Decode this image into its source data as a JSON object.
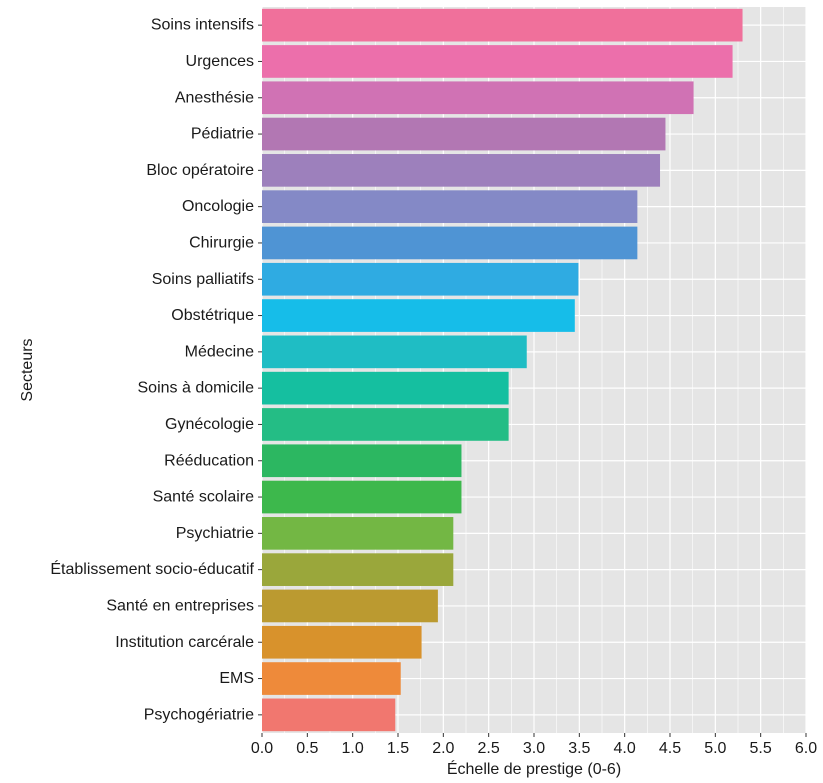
{
  "chart_data": {
    "type": "bar",
    "orientation": "horizontal",
    "title": "",
    "xlabel": "Échelle de prestige (0-6)",
    "ylabel": "Secteurs",
    "xlim": [
      0,
      6
    ],
    "xticks": [
      "0.0",
      "0.5",
      "1.0",
      "1.5",
      "2.0",
      "2.5",
      "3.0",
      "3.5",
      "4.0",
      "4.5",
      "5.0",
      "5.5",
      "6.0"
    ],
    "grid": true,
    "legend": "none",
    "panel_background": "#e5e5e5",
    "grid_color": "#ffffff",
    "categories": [
      "Soins intensifs",
      "Urgences",
      "Anesthésie",
      "Pédiatrie",
      "Bloc opératoire",
      "Oncologie",
      "Chirurgie",
      "Soins palliatifs",
      "Obstétrique",
      "Médecine",
      "Soins à domicile",
      "Gynécologie",
      "Rééducation",
      "Santé scolaire",
      "Psychiatrie",
      "Établissement socio-éducatif",
      "Santé en entreprises",
      "Institution carcérale",
      "EMS",
      "Psychogériatrie"
    ],
    "values": [
      5.3,
      5.19,
      4.76,
      4.45,
      4.39,
      4.14,
      4.14,
      3.49,
      3.45,
      2.92,
      2.72,
      2.72,
      2.2,
      2.2,
      2.11,
      2.11,
      1.94,
      1.76,
      1.53,
      1.47
    ],
    "colors": [
      "#f0709b",
      "#ec6fab",
      "#d072b4",
      "#b277b3",
      "#9d80bc",
      "#8489c6",
      "#4f94d4",
      "#2fabe2",
      "#16bde9",
      "#1fbdc4",
      "#15bfa0",
      "#24bd85",
      "#2cb761",
      "#3db84c",
      "#73b744",
      "#9aa73b",
      "#bb9a30",
      "#d8922c",
      "#ee8a3a",
      "#f1776f"
    ]
  }
}
